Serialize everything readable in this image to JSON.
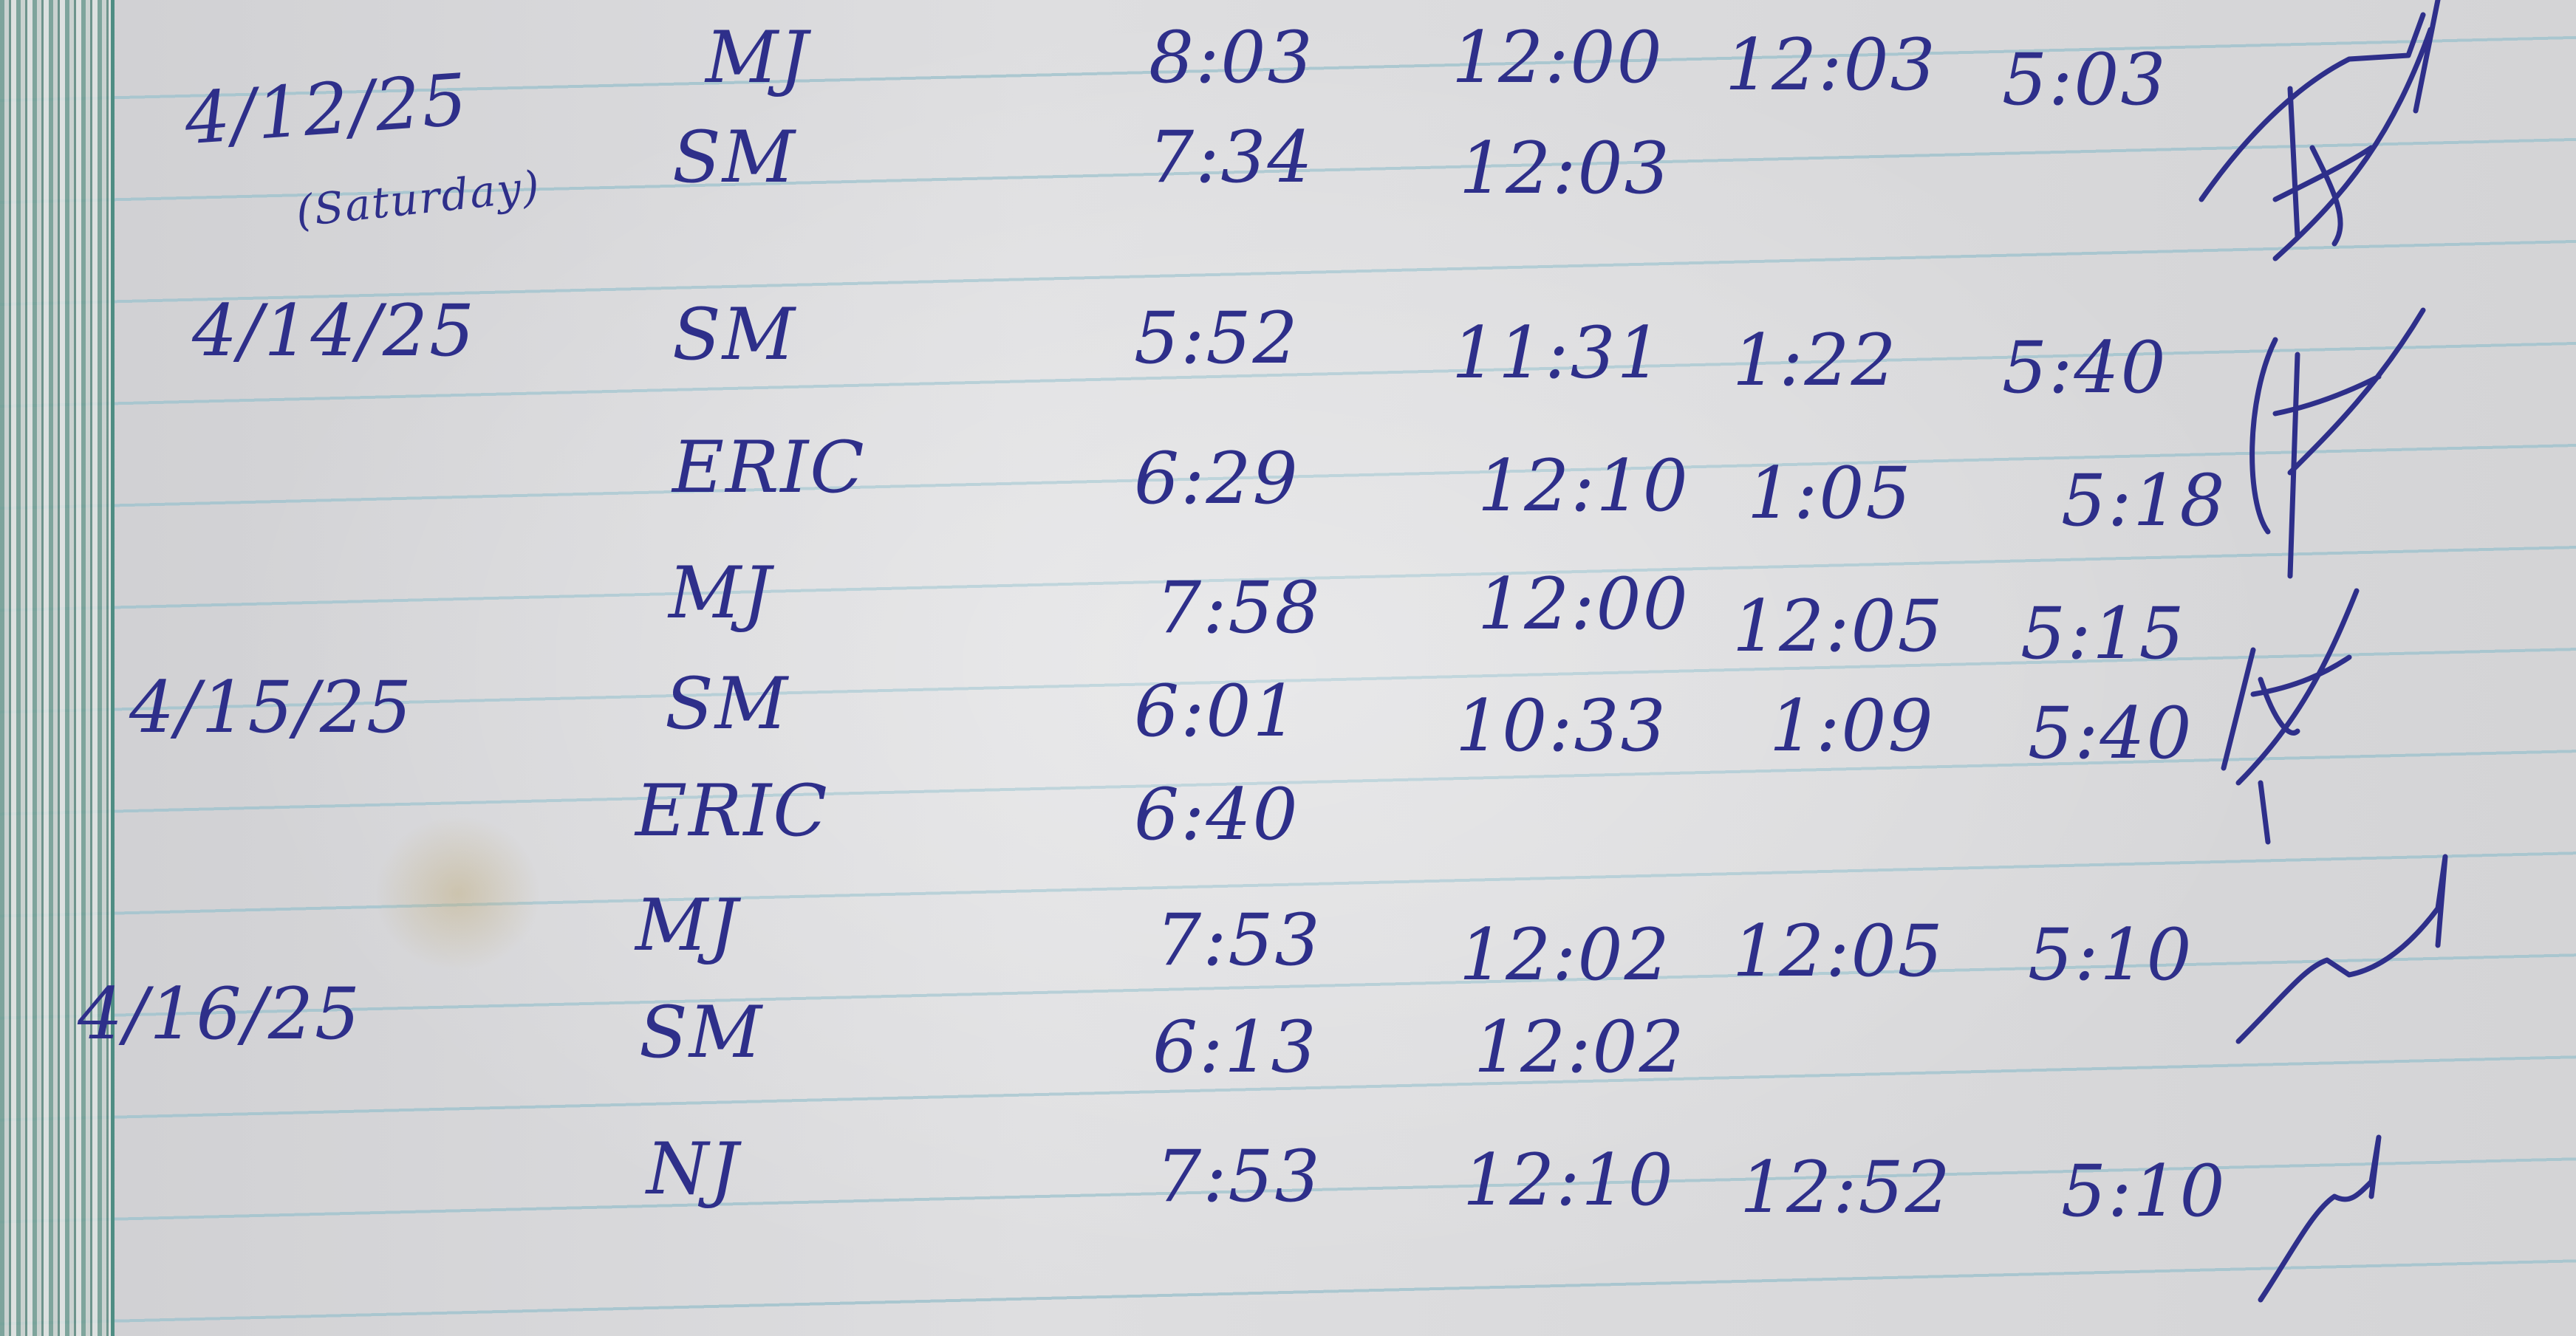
{
  "ink_color": "#2e2f8a",
  "entries": [
    {
      "date": "4/12/25",
      "note": "(Saturday)",
      "rows": [
        {
          "name": "MJ",
          "times": [
            "8:03",
            "12:00",
            "12:03",
            "5:03"
          ],
          "signed": true
        },
        {
          "name": "SM",
          "times": [
            "7:34",
            "12:03"
          ],
          "signed": true
        }
      ]
    },
    {
      "date": "4/14/25",
      "rows": [
        {
          "name": "SM",
          "times": [
            "5:52",
            "11:31",
            "1:22",
            "5:40"
          ],
          "signed": true
        },
        {
          "name": "ERIC",
          "times": [
            "6:29",
            "12:10",
            "1:05",
            "5:18"
          ],
          "signed": true
        },
        {
          "name": "MJ",
          "times": [
            "7:58",
            "12:00",
            "12:05",
            "5:15"
          ],
          "signed": true
        }
      ]
    },
    {
      "date": "4/15/25",
      "rows": [
        {
          "name": "SM",
          "times": [
            "6:01",
            "10:33",
            "1:09",
            "5:40"
          ],
          "signed": true
        },
        {
          "name": "ERIC",
          "times": [
            "6:40"
          ],
          "signed": false
        },
        {
          "name": "MJ",
          "times": [
            "7:53",
            "12:02",
            "12:05",
            "5:10"
          ],
          "signed": true
        }
      ]
    },
    {
      "date": "4/16/25",
      "rows": [
        {
          "name": "SM",
          "times": [
            "6:13",
            "12:02"
          ],
          "signed": false
        },
        {
          "name": "NJ",
          "times": [
            "7:53",
            "12:10",
            "12:52",
            "5:10"
          ],
          "signed": true
        }
      ]
    }
  ]
}
